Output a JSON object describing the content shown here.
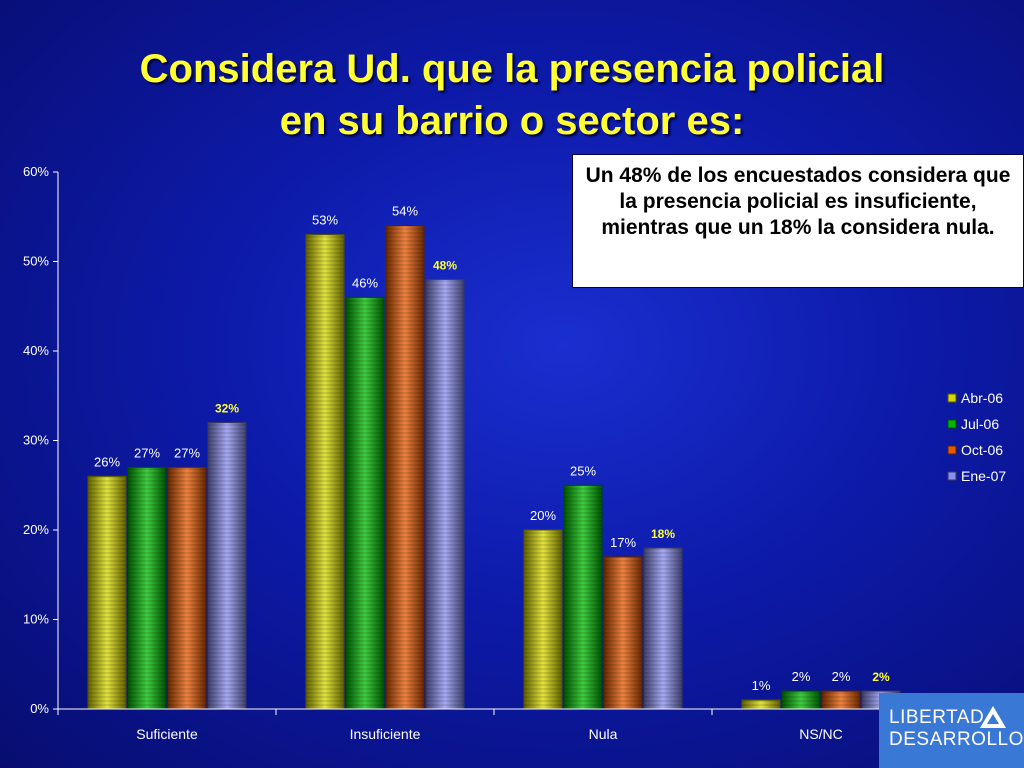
{
  "slide": {
    "title_line1": "Considera Ud. que la presencia policial",
    "title_line2": "en su barrio o sector es:",
    "note": "Un 48% de los encuestados considera que la presencia policial es insuficiente, mientras que un 18% la considera nula.",
    "logo_line1": "LIBERTAD",
    "logo_line2": "DESARROLLO"
  },
  "chart_data": {
    "type": "bar",
    "title": "",
    "xlabel": "",
    "ylabel": "",
    "ylim": [
      0,
      60
    ],
    "yticks": [
      0,
      10,
      20,
      30,
      40,
      50,
      60
    ],
    "ytick_labels": [
      "0%",
      "10%",
      "20%",
      "30%",
      "40%",
      "50%",
      "60%"
    ],
    "categories": [
      "Suficiente",
      "Insuficiente",
      "Nula",
      "NS/NC"
    ],
    "series": [
      {
        "name": "Abr-06",
        "color": "#d8d800",
        "values": [
          26,
          53,
          20,
          1
        ],
        "labels": [
          "26%",
          "53%",
          "20%",
          "1%"
        ]
      },
      {
        "name": "Jul-06",
        "color": "#00bb00",
        "values": [
          27,
          46,
          25,
          2
        ],
        "labels": [
          "27%",
          "46%",
          "25%",
          "2%"
        ]
      },
      {
        "name": "Oct-06",
        "color": "#e85a00",
        "values": [
          27,
          54,
          17,
          2
        ],
        "labels": [
          "27%",
          "54%",
          "17%",
          "2%"
        ]
      },
      {
        "name": "Ene-07",
        "color": "#8a8ef0",
        "values": [
          32,
          48,
          18,
          2
        ],
        "labels": [
          "32%",
          "48%",
          "18%",
          "2%"
        ]
      }
    ],
    "highlight_series": "Ene-07",
    "highlight_color": "#ffff33",
    "label_color": "#ffffff",
    "grid": false,
    "legend": "right"
  }
}
